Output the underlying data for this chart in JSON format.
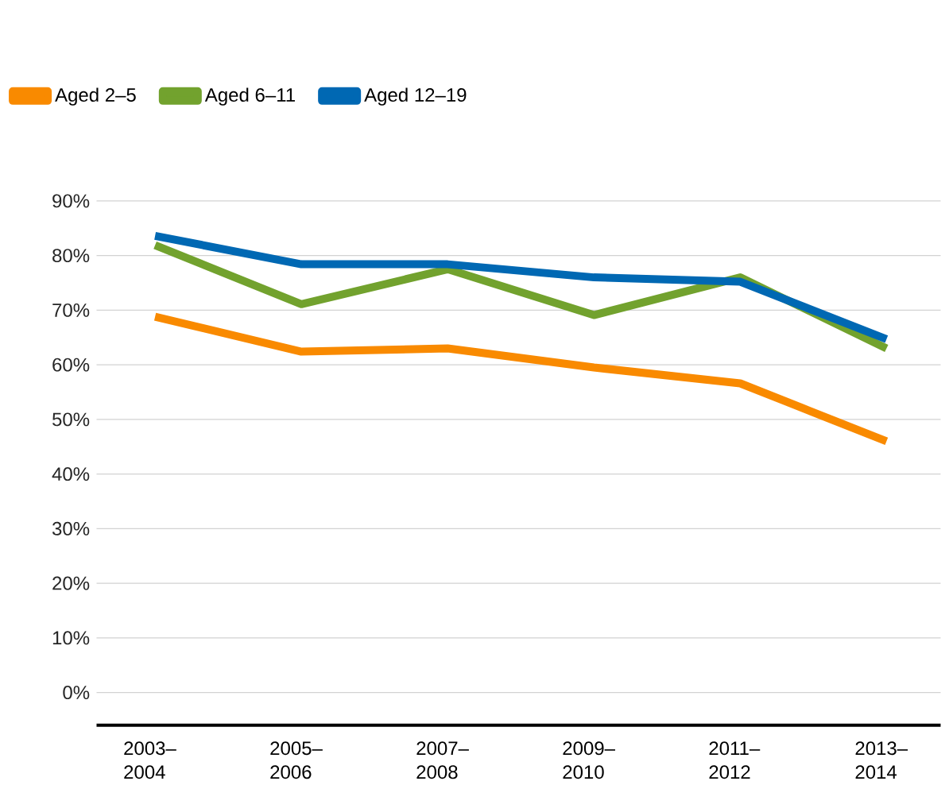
{
  "chart_data": {
    "type": "line",
    "categories": [
      "2003–2004",
      "2005–2006",
      "2007–2008",
      "2009–2010",
      "2011–2012",
      "2013–2014"
    ],
    "series": [
      {
        "name": "Aged 2–5",
        "color": "#f98a00",
        "values": [
          68.8,
          62.4,
          63,
          59.5,
          56.6,
          46
        ]
      },
      {
        "name": "Aged 6–11",
        "color": "#72a22e",
        "values": [
          81.9,
          71.1,
          77.5,
          69.1,
          76,
          63
        ]
      },
      {
        "name": "Aged 12–19",
        "color": "#0068b3",
        "values": [
          83.6,
          78.4,
          78.4,
          76,
          75.2,
          64.7
        ]
      }
    ],
    "ylim": [
      -6,
      90
    ],
    "yticks": [
      {
        "value": 0,
        "label": "0%"
      },
      {
        "value": 10,
        "label": "10%"
      },
      {
        "value": 20,
        "label": "20%"
      },
      {
        "value": 30,
        "label": "30%"
      },
      {
        "value": 40,
        "label": "40%"
      },
      {
        "value": 50,
        "label": "50%"
      },
      {
        "value": 60,
        "label": "60%"
      },
      {
        "value": 70,
        "label": "70%"
      },
      {
        "value": 80,
        "label": "80%"
      },
      {
        "value": 90,
        "label": "90%"
      }
    ],
    "grid": "y",
    "legend": "top left",
    "marker": "none",
    "line_style": "solid"
  }
}
